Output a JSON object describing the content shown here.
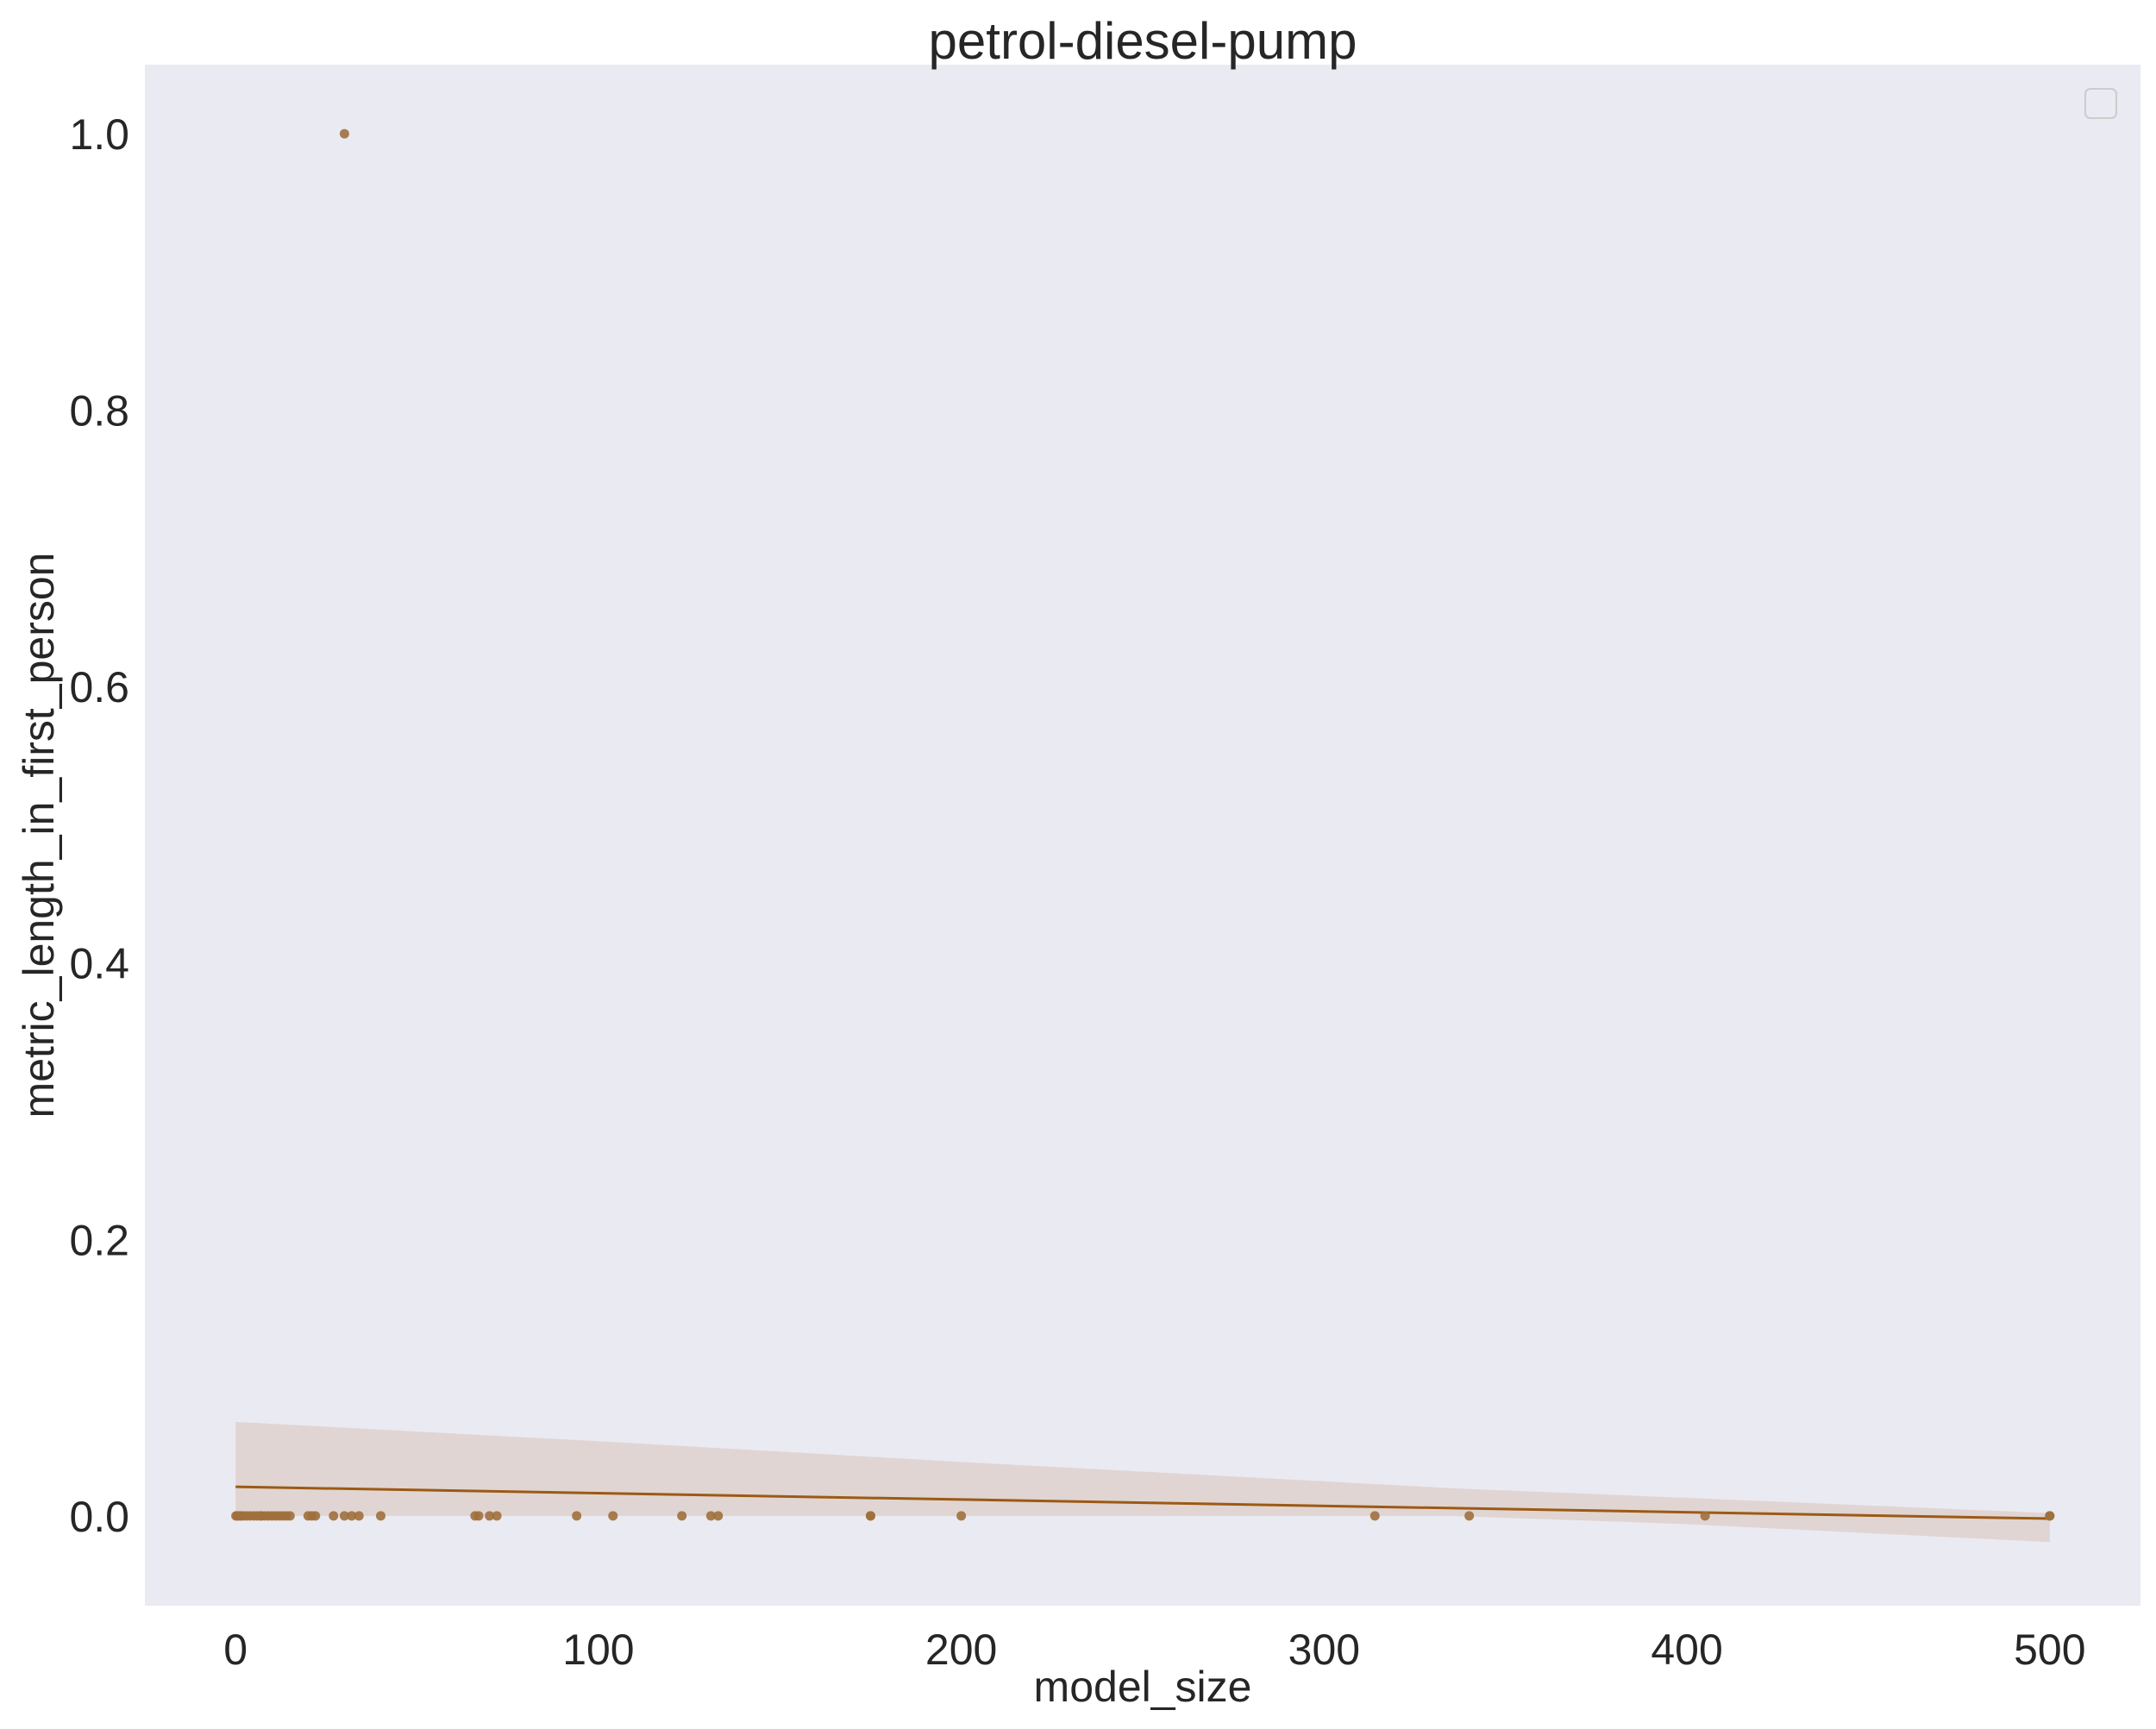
{
  "chart_data": {
    "type": "scatter",
    "title": "petrol-diesel-pump",
    "xlabel": "model_size",
    "ylabel": "metric_length_in_first_person",
    "xlim": [
      -25,
      525
    ],
    "ylim": [
      -0.065,
      1.05
    ],
    "x_ticks": [
      0,
      100,
      200,
      300,
      400,
      500
    ],
    "x_tick_labels": [
      "0",
      "100",
      "200",
      "300",
      "400",
      "500"
    ],
    "y_ticks": [
      0.0,
      0.2,
      0.4,
      0.6,
      0.8,
      1.0
    ],
    "y_tick_labels": [
      "0.0",
      "0.2",
      "0.4",
      "0.6",
      "0.8",
      "1.0"
    ],
    "grid": false,
    "legend": {
      "placement": "top-right",
      "entries": []
    },
    "colors": {
      "background": "#eaeaf2",
      "points": "#a0703c",
      "line": "#9c5a14",
      "band": "#dfd3cf"
    },
    "series": [
      {
        "points": [
          [
            0.1,
            0
          ],
          [
            0.5,
            0
          ],
          [
            1,
            0
          ],
          [
            1.5,
            0
          ],
          [
            2,
            0
          ],
          [
            3,
            0
          ],
          [
            4,
            0
          ],
          [
            5,
            0
          ],
          [
            6,
            0
          ],
          [
            7,
            0
          ],
          [
            7,
            0
          ],
          [
            8,
            0
          ],
          [
            9,
            0
          ],
          [
            10,
            0
          ],
          [
            11,
            0
          ],
          [
            12,
            0
          ],
          [
            13,
            0
          ],
          [
            14,
            0
          ],
          [
            15,
            0
          ],
          [
            20,
            0
          ],
          [
            21,
            0
          ],
          [
            22,
            0
          ],
          [
            27,
            0
          ],
          [
            30,
            1
          ],
          [
            30,
            0
          ],
          [
            32,
            0
          ],
          [
            34,
            0
          ],
          [
            40,
            0
          ],
          [
            66,
            0
          ],
          [
            67,
            0
          ],
          [
            70,
            0
          ],
          [
            72,
            0
          ],
          [
            94,
            0
          ],
          [
            104,
            0
          ],
          [
            123,
            0
          ],
          [
            131,
            0
          ],
          [
            133,
            0
          ],
          [
            175,
            0
          ],
          [
            175,
            0
          ],
          [
            200,
            0
          ],
          [
            314,
            0
          ],
          [
            340,
            0
          ],
          [
            405,
            0
          ],
          [
            500,
            0
          ],
          [
            500,
            0
          ]
        ]
      }
    ],
    "regression": {
      "line": [
        [
          0,
          0.021
        ],
        [
          500,
          -0.002
        ]
      ],
      "ci_upper": [
        [
          0,
          0.068
        ],
        [
          100,
          0.054
        ],
        [
          200,
          0.039
        ],
        [
          300,
          0.025
        ],
        [
          335,
          0.02
        ],
        [
          400,
          0.013
        ],
        [
          500,
          0.002
        ]
      ],
      "ci_lower": [
        [
          0,
          0.0
        ],
        [
          100,
          0.0
        ],
        [
          200,
          0.0
        ],
        [
          300,
          0.0
        ],
        [
          335,
          0.0
        ],
        [
          400,
          -0.006
        ],
        [
          500,
          -0.019
        ]
      ]
    }
  }
}
